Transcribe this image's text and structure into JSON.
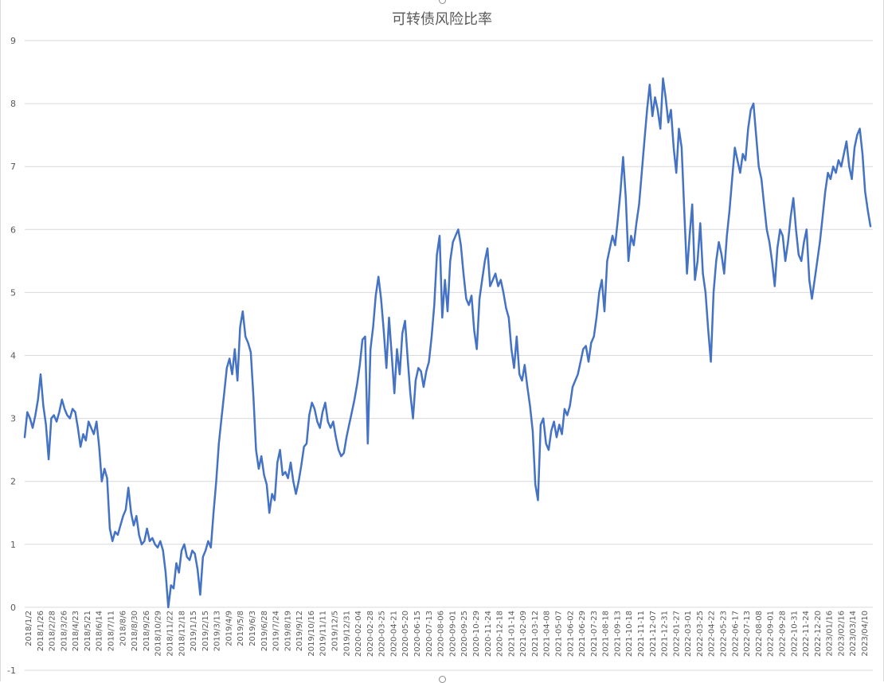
{
  "chart_data": {
    "type": "line",
    "title": "可转债风险比率",
    "xlabel": "",
    "ylabel": "",
    "ylim": [
      -1,
      9
    ],
    "y_ticks": [
      -1,
      0,
      1,
      2,
      3,
      4,
      5,
      6,
      7,
      8,
      9
    ],
    "grid": "horizontal",
    "legend": "none",
    "line_color": "#4472c4",
    "grid_color": "#d9d9d9",
    "x_ticks": [
      "2018/1/2",
      "2018/1/26",
      "2018/2/28",
      "2018/3/26",
      "2018/4/23",
      "2018/5/21",
      "2018/6/14",
      "2018/7/11",
      "2018/8/6",
      "2018/8/30",
      "2018/9/26",
      "2018/10/29",
      "2018/11/22",
      "2018/12/18",
      "2019/1/15",
      "2019/2/15",
      "2019/3/13",
      "2019/4/9",
      "2019/5/8",
      "2019/6/3",
      "2019/6/28",
      "2019/7/24",
      "2019/8/19",
      "2019/9/12",
      "2019/10/16",
      "2019/11/11",
      "2019/12/5",
      "2019/12/31",
      "2020-02-04",
      "2020-02-28",
      "2020-03-25",
      "2020-04-21",
      "2020-05-20",
      "2020-06-15",
      "2020-07-13",
      "2020-08-06",
      "2020-09-01",
      "2020-09-25",
      "2020-10-29",
      "2020-11-24",
      "2020-12-18",
      "2021-01-14",
      "2021-02-09",
      "2021-03-12",
      "2021-04-08",
      "2021-05-07",
      "2021-06-02",
      "2021-06-29",
      "2021-07-23",
      "2021-08-18",
      "2021-09-13",
      "2021-10-18",
      "2021-11-11",
      "2021-12-07",
      "2021-12-31",
      "2022-01-27",
      "2022-03-01",
      "2022-03-25",
      "2022-04-22",
      "2022-05-23",
      "2022-06-17",
      "2022-07-13",
      "2022-08-08",
      "2022-09-01",
      "2022-09-28",
      "2022-10-31",
      "2022-11-24",
      "2022-12-20",
      "2023/01/16",
      "2023/02/16",
      "2023/03/14",
      "2023/04/10"
    ],
    "series": [
      {
        "values": [
          2.7,
          3.1,
          3.0,
          2.85,
          3.05,
          3.3,
          3.7,
          3.2,
          2.9,
          2.35,
          3.0,
          3.05,
          2.95,
          3.1,
          3.3,
          3.15,
          3.05,
          3.0,
          3.15,
          3.1,
          2.85,
          2.55,
          2.75,
          2.65,
          2.95,
          2.85,
          2.75,
          2.95,
          2.55,
          2.0,
          2.2,
          2.05,
          1.25,
          1.05,
          1.2,
          1.15,
          1.3,
          1.45,
          1.55,
          1.9,
          1.5,
          1.3,
          1.45,
          1.15,
          1.0,
          1.05,
          1.25,
          1.05,
          1.1,
          1.0,
          0.95,
          1.05,
          0.9,
          0.55,
          0.0,
          0.35,
          0.3,
          0.7,
          0.55,
          0.9,
          1.0,
          0.8,
          0.75,
          0.9,
          0.85,
          0.6,
          0.2,
          0.8,
          0.9,
          1.05,
          0.95,
          1.5,
          2.0,
          2.6,
          3.0,
          3.4,
          3.8,
          3.95,
          3.7,
          4.1,
          3.6,
          4.45,
          4.7,
          4.3,
          4.2,
          4.05,
          3.35,
          2.5,
          2.2,
          2.4,
          2.1,
          1.95,
          1.5,
          1.8,
          1.7,
          2.3,
          2.5,
          2.1,
          2.15,
          2.05,
          2.3,
          2.0,
          1.8,
          2.0,
          2.25,
          2.55,
          2.6,
          3.05,
          3.25,
          3.15,
          2.95,
          2.85,
          3.1,
          3.25,
          2.95,
          2.85,
          2.95,
          2.7,
          2.5,
          2.4,
          2.45,
          2.7,
          2.9,
          3.1,
          3.3,
          3.55,
          3.85,
          4.25,
          4.3,
          2.6,
          4.1,
          4.45,
          4.95,
          5.25,
          4.9,
          4.4,
          3.8,
          4.6,
          4.0,
          3.4,
          4.1,
          3.7,
          4.35,
          4.55,
          3.95,
          3.4,
          3.0,
          3.6,
          3.8,
          3.75,
          3.5,
          3.75,
          3.9,
          4.3,
          4.8,
          5.6,
          5.9,
          4.6,
          5.2,
          4.7,
          5.5,
          5.8,
          5.9,
          6.0,
          5.75,
          5.3,
          4.9,
          4.8,
          4.95,
          4.4,
          4.1,
          4.9,
          5.2,
          5.5,
          5.7,
          5.1,
          5.2,
          5.3,
          5.1,
          5.2,
          5.0,
          4.75,
          4.6,
          4.1,
          3.8,
          4.3,
          3.7,
          3.6,
          3.85,
          3.5,
          3.2,
          2.8,
          1.95,
          1.7,
          2.9,
          3.0,
          2.6,
          2.5,
          2.8,
          2.95,
          2.7,
          2.9,
          2.75,
          3.15,
          3.05,
          3.2,
          3.5,
          3.6,
          3.7,
          3.9,
          4.1,
          4.15,
          3.9,
          4.2,
          4.3,
          4.6,
          5.0,
          5.2,
          4.7,
          5.5,
          5.7,
          5.9,
          5.75,
          6.15,
          6.6,
          7.15,
          6.5,
          5.5,
          5.9,
          5.75,
          6.1,
          6.4,
          6.9,
          7.4,
          7.9,
          8.3,
          7.8,
          8.1,
          7.9,
          7.6,
          8.4,
          8.1,
          7.7,
          7.9,
          7.3,
          6.9,
          7.6,
          7.3,
          6.3,
          5.3,
          5.9,
          6.4,
          5.2,
          5.5,
          6.1,
          5.3,
          5.0,
          4.4,
          3.9,
          5.0,
          5.5,
          5.8,
          5.6,
          5.3,
          5.9,
          6.3,
          6.8,
          7.3,
          7.1,
          6.9,
          7.2,
          7.1,
          7.6,
          7.9,
          8.0,
          7.5,
          7.0,
          6.8,
          6.4,
          6.0,
          5.8,
          5.5,
          5.1,
          5.7,
          6.0,
          5.9,
          5.5,
          5.8,
          6.2,
          6.5,
          6.0,
          5.6,
          5.5,
          5.8,
          6.0,
          5.2,
          4.9,
          5.2,
          5.5,
          5.8,
          6.2,
          6.6,
          6.9,
          6.8,
          7.0,
          6.9,
          7.1,
          7.0,
          7.2,
          7.4,
          7.0,
          6.8,
          7.3,
          7.5,
          7.6,
          7.2,
          6.6,
          6.3,
          6.05
        ]
      }
    ]
  }
}
